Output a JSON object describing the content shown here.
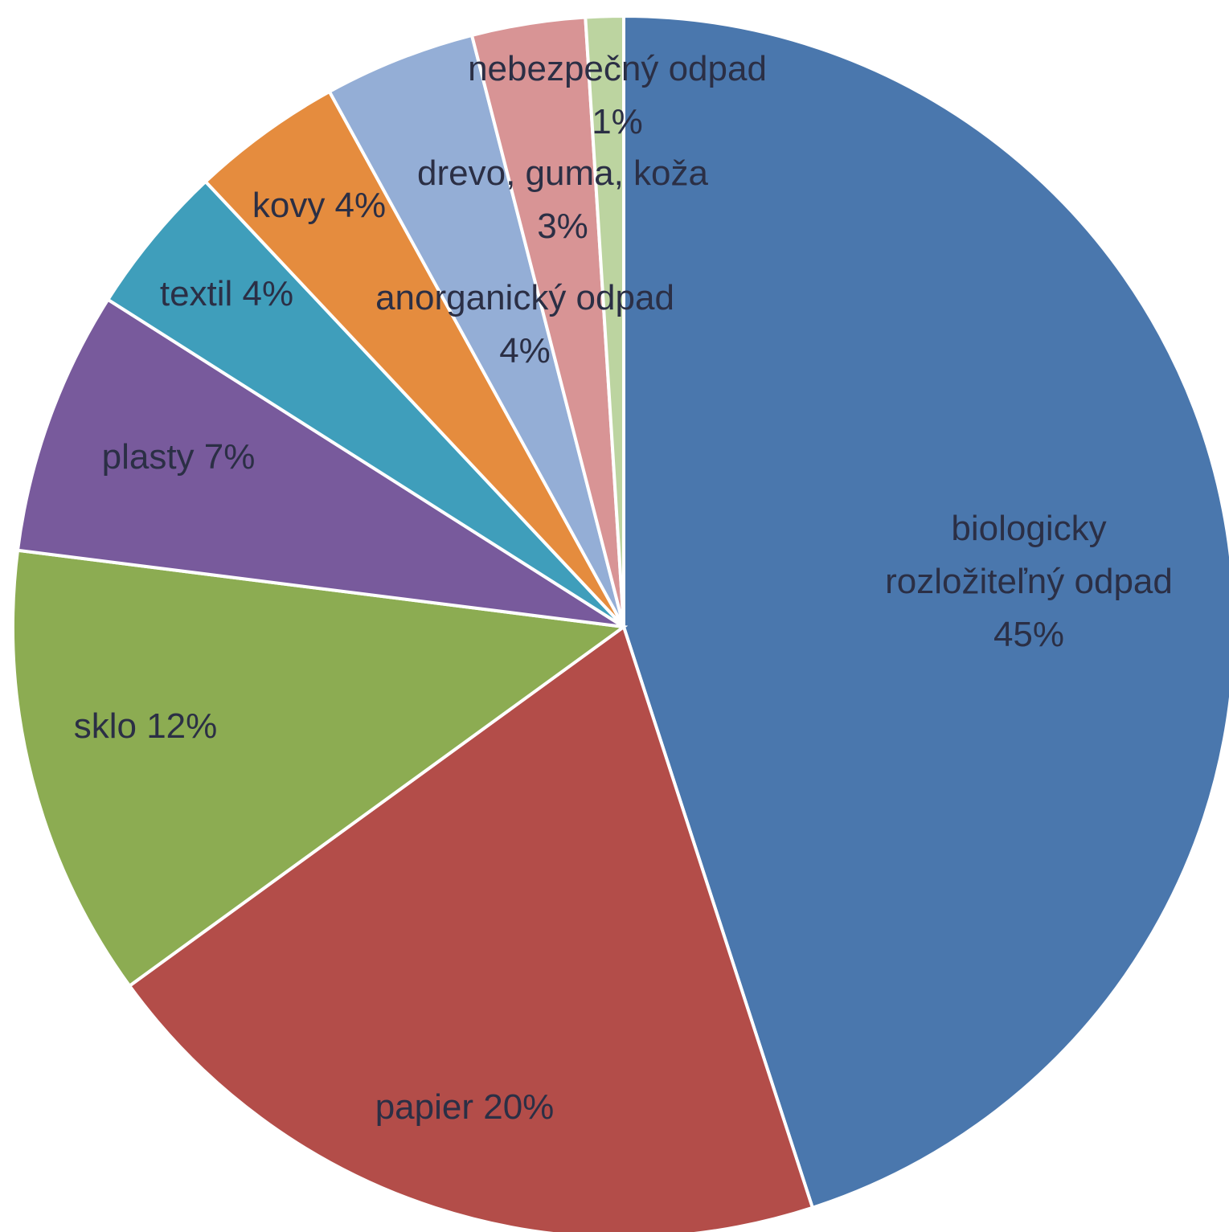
{
  "chart_data": {
    "type": "pie",
    "start_angle_deg": 0,
    "direction": "clockwise",
    "slices": [
      {
        "lines": [
          "biologicky",
          "rozložiteľný odpad",
          "45%"
        ],
        "value": 45,
        "color": "#4a77ad"
      },
      {
        "lines": [
          "papier 20%"
        ],
        "value": 20,
        "color": "#b34d49"
      },
      {
        "lines": [
          "sklo 12%"
        ],
        "value": 12,
        "color": "#8cac52"
      },
      {
        "lines": [
          "plasty 7%"
        ],
        "value": 7,
        "color": "#785a9c"
      },
      {
        "lines": [
          "textil 4%"
        ],
        "value": 4,
        "color": "#3f9ebb"
      },
      {
        "lines": [
          "kovy 4%"
        ],
        "value": 4,
        "color": "#e58c3e"
      },
      {
        "lines": [
          "anorganický odpad",
          "4%"
        ],
        "value": 4,
        "color": "#94aed6"
      },
      {
        "lines": [
          "drevo, guma, koža",
          "3%"
        ],
        "value": 3,
        "color": "#d89495"
      },
      {
        "lines": [
          "nebezpečný odpad",
          "1%"
        ],
        "value": 1,
        "color": "#bcd4a0"
      }
    ]
  }
}
